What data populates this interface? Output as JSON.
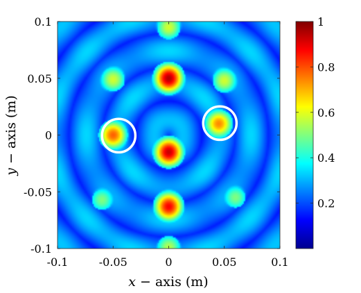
{
  "chart_data": {
    "type": "heatmap",
    "title": "",
    "xlabel": {
      "var": "x",
      "rest": " − axis (m)"
    },
    "ylabel": {
      "var": "y",
      "rest": " − axis (m)"
    },
    "xlim": [
      -0.1,
      0.1
    ],
    "ylim": [
      -0.1,
      0.1
    ],
    "x_ticks": [
      -0.1,
      -0.05,
      0,
      0.05,
      0.1
    ],
    "x_tick_labels": [
      "-0.1",
      "-0.05",
      "0",
      "0.05",
      "0.1"
    ],
    "y_ticks": [
      -0.1,
      -0.05,
      0,
      0.05,
      0.1
    ],
    "y_tick_labels": [
      "-0.1",
      "-0.05",
      "0",
      "0.05",
      "0.1"
    ],
    "colorbar": {
      "colormap": "jet",
      "range": [
        0,
        1
      ],
      "ticks": [
        0.2,
        0.4,
        0.6,
        0.8,
        1
      ],
      "tick_labels": [
        "0.2",
        "0.4",
        "0.6",
        "0.8",
        "1"
      ]
    },
    "peaks": [
      {
        "x": 0.0,
        "y": 0.05,
        "value": 0.95
      },
      {
        "x": 0.0,
        "y": -0.015,
        "value": 0.93
      },
      {
        "x": 0.0,
        "y": -0.063,
        "value": 0.88
      },
      {
        "x": -0.05,
        "y": 0.0,
        "value": 0.78
      },
      {
        "x": 0.045,
        "y": 0.01,
        "value": 0.74
      },
      {
        "x": -0.05,
        "y": 0.049,
        "value": 0.58
      },
      {
        "x": 0.05,
        "y": 0.048,
        "value": 0.58
      },
      {
        "x": 0.0,
        "y": 0.095,
        "value": 0.58
      },
      {
        "x": 0.0,
        "y": -0.099,
        "value": 0.55
      },
      {
        "x": -0.06,
        "y": -0.057,
        "value": 0.5
      },
      {
        "x": 0.06,
        "y": -0.055,
        "value": 0.5
      }
    ],
    "annotations": [
      {
        "shape": "circle",
        "x": -0.045,
        "y": -0.0005,
        "radius": 0.015,
        "color": "#ffffff"
      },
      {
        "shape": "circle",
        "x": 0.046,
        "y": 0.0105,
        "radius": 0.015,
        "color": "#ffffff"
      }
    ]
  }
}
